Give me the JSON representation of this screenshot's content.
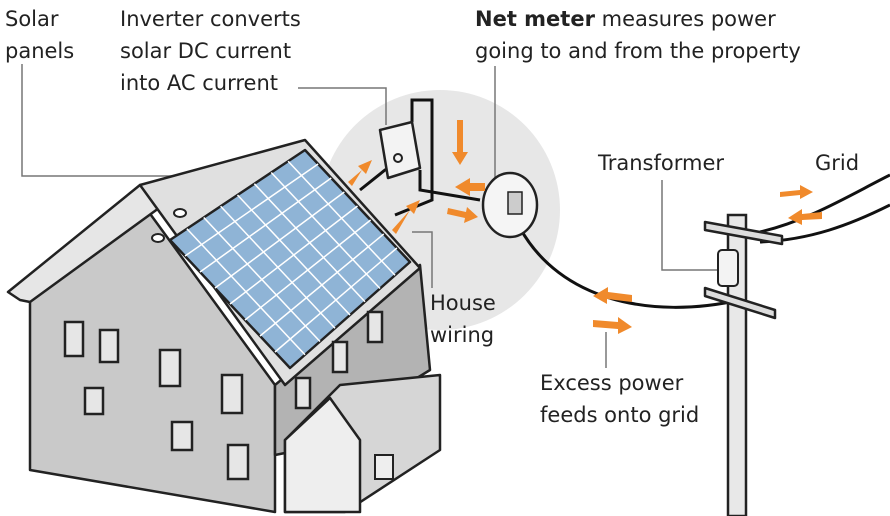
{
  "labels": {
    "solar_panels": [
      "Solar",
      "panels"
    ],
    "inverter": [
      "Inverter converts",
      "solar DC current",
      "into AC current"
    ],
    "net_meter": {
      "bold": "Net meter",
      "lines": [
        "measures power",
        "going to and from the property"
      ]
    },
    "transformer": "Transformer",
    "grid": "Grid",
    "house_wiring": [
      "House",
      "wiring"
    ],
    "excess_power": [
      "Excess power",
      "feeds onto grid"
    ]
  }
}
